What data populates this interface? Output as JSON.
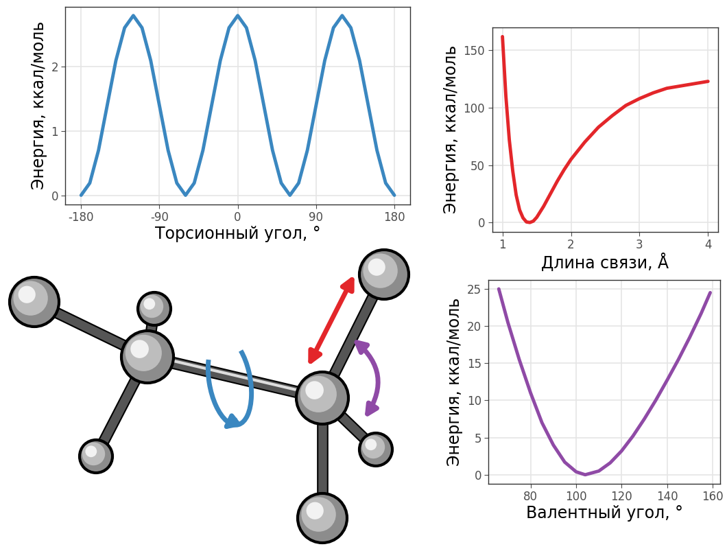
{
  "chart_data": [
    {
      "type": "line",
      "color": "#3a87c0",
      "grid": true,
      "xlabel": "Торсионный угол, °",
      "ylabel": "Энергия, ккал/моль",
      "x": [
        -180,
        -170,
        -160,
        -150,
        -140,
        -130,
        -120,
        -110,
        -100,
        -90,
        -80,
        -70,
        -60,
        -50,
        -40,
        -30,
        -20,
        -10,
        0,
        10,
        20,
        30,
        40,
        50,
        60,
        70,
        80,
        90,
        100,
        110,
        120,
        130,
        140,
        150,
        160,
        170,
        180
      ],
      "values": [
        0,
        0.19,
        0.7,
        1.4,
        2.1,
        2.61,
        2.8,
        2.61,
        2.1,
        1.4,
        0.7,
        0.19,
        0,
        0.19,
        0.7,
        1.4,
        2.1,
        2.61,
        2.8,
        2.61,
        2.1,
        1.4,
        0.7,
        0.19,
        0,
        0.19,
        0.7,
        1.4,
        2.1,
        2.61,
        2.8,
        2.61,
        2.1,
        1.4,
        0.7,
        0.19,
        0
      ],
      "xlim": [
        -198,
        198
      ],
      "ylim": [
        -0.14,
        2.94
      ],
      "xticks": [
        -180,
        -90,
        0,
        90,
        180
      ],
      "yticks": [
        0,
        1,
        2
      ]
    },
    {
      "type": "line",
      "color": "#e3262a",
      "grid": true,
      "xlabel": "Длина связи, Å",
      "ylabel": "Энергия, ккал/моль",
      "x": [
        1.0,
        1.05,
        1.1,
        1.15,
        1.2,
        1.25,
        1.3,
        1.35,
        1.4,
        1.45,
        1.5,
        1.6,
        1.7,
        1.8,
        1.9,
        2.0,
        2.2,
        2.4,
        2.6,
        2.8,
        3.0,
        3.2,
        3.4,
        3.6,
        3.8,
        4.0
      ],
      "values": [
        162,
        110,
        72,
        45,
        24,
        11,
        4,
        0.5,
        0,
        1.2,
        4.5,
        14,
        25,
        36,
        46,
        55,
        70,
        83,
        93,
        102,
        108,
        113,
        117,
        119,
        121,
        123
      ],
      "xlim": [
        0.85,
        4.15
      ],
      "ylim": [
        -8,
        170
      ],
      "xticks": [
        1,
        2,
        3,
        4
      ],
      "yticks": [
        0,
        50,
        100,
        150
      ]
    },
    {
      "type": "line",
      "color": "#8f4aa6",
      "grid": true,
      "xlabel": "Валентный угол, °",
      "ylabel": "Энергия, ккал/моль",
      "x": [
        66,
        70,
        75,
        80,
        85,
        90,
        95,
        100,
        104,
        110,
        115,
        120,
        125,
        130,
        135,
        140,
        145,
        150,
        155,
        159
      ],
      "values": [
        25,
        20.5,
        15.5,
        11,
        7,
        4,
        1.7,
        0.4,
        0,
        0.5,
        1.6,
        3.2,
        5.2,
        7.5,
        10,
        12.7,
        15.5,
        18.5,
        21.7,
        24.5
      ],
      "xlim": [
        61.5,
        163.5
      ],
      "ylim": [
        -1.2,
        26.2
      ],
      "xticks": [
        80,
        100,
        120,
        140,
        160
      ],
      "yticks": [
        0,
        5,
        10,
        15,
        20,
        25
      ]
    }
  ]
}
